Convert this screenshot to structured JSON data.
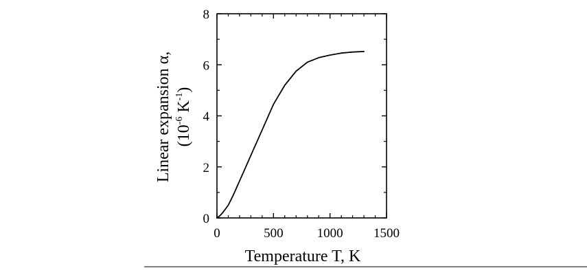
{
  "chart_data": {
    "type": "line",
    "title": "",
    "xlabel": "Temperature T, K",
    "ylabel": {
      "line1": "Linear expansion α,",
      "line2_open": "(10",
      "line2_exp1": "-6",
      "line2_unit": " K",
      "line2_exp2": "-1",
      "line2_close": ")"
    },
    "xlim": [
      0,
      1500
    ],
    "ylim": [
      0,
      8
    ],
    "xticks": [
      0,
      500,
      1000,
      1500
    ],
    "xtick_labels": [
      "0",
      "500",
      "1000",
      "1500"
    ],
    "yticks": [
      0,
      2,
      4,
      6,
      8
    ],
    "ytick_labels": [
      "0",
      "2",
      "4",
      "6",
      "8"
    ],
    "x_minor_step": 100,
    "y_minor_step": 1,
    "grid": false,
    "legend": "none",
    "series": [
      {
        "color": "#000000",
        "x": [
          0,
          25,
          50,
          75,
          100,
          125,
          150,
          200,
          250,
          300,
          400,
          500,
          600,
          700,
          800,
          900,
          1000,
          1100,
          1200,
          1300
        ],
        "y": [
          0,
          0.08,
          0.2,
          0.35,
          0.5,
          0.72,
          0.95,
          1.45,
          1.95,
          2.45,
          3.45,
          4.45,
          5.2,
          5.75,
          6.1,
          6.28,
          6.38,
          6.46,
          6.5,
          6.52
        ]
      }
    ]
  }
}
